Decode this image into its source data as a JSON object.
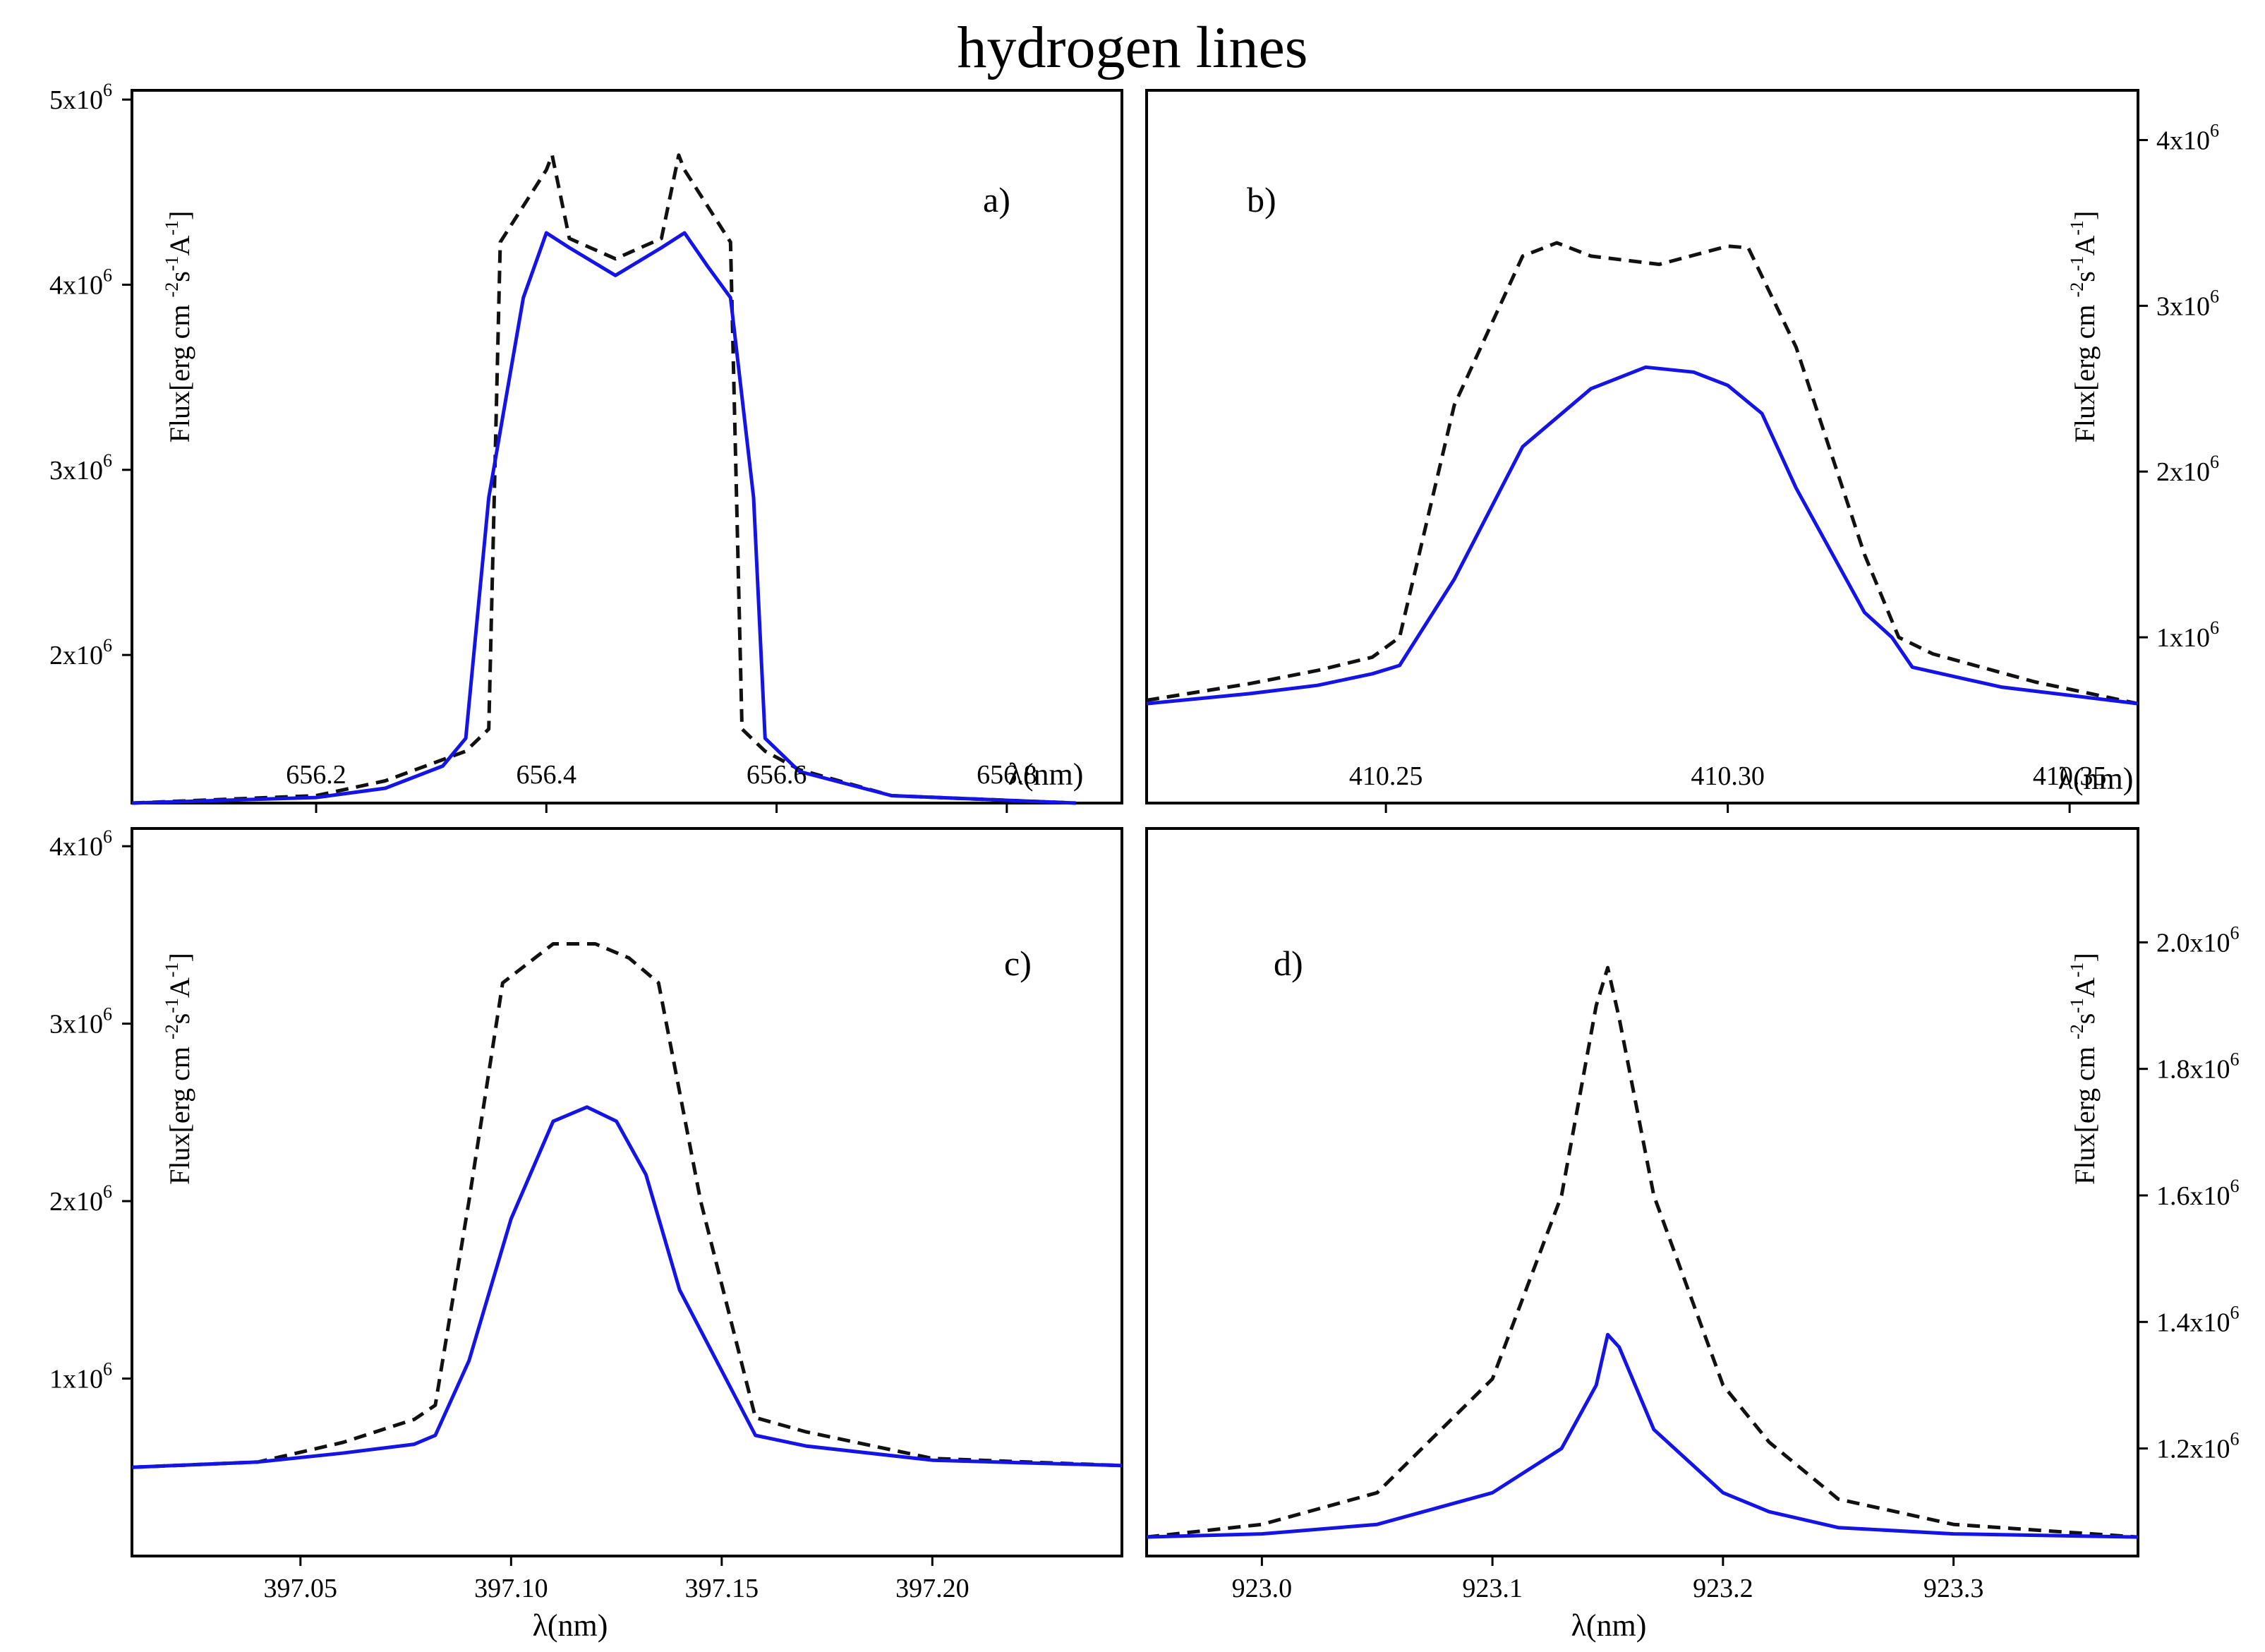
{
  "title": "hydrogen lines",
  "colors": {
    "dashed": "#111111",
    "solid": "#1414e6"
  },
  "chart_data": [
    {
      "type": "line",
      "panel_label": "a)",
      "xlabel": "λ(nm)",
      "ylabel": "Flux[erg cm-2s-1A-1]",
      "xlim": [
        656.04,
        656.9
      ],
      "ylim": [
        1200000,
        5050000
      ],
      "xticks": [
        656.2,
        656.4,
        656.6,
        656.8
      ],
      "xtick_labels": [
        "656.2",
        "656.4",
        "656.6",
        "656.8"
      ],
      "yticks": [
        2000000,
        3000000,
        4000000,
        5000000
      ],
      "ytick_labels": [
        {
          "base": "2x10",
          "exp": "6"
        },
        {
          "base": "3x10",
          "exp": "6"
        },
        {
          "base": "4x10",
          "exp": "6"
        },
        {
          "base": "5x10",
          "exp": "6"
        }
      ],
      "yaxis_side": "left",
      "series": [
        {
          "name": "dashed",
          "x": [
            656.04,
            656.2,
            656.26,
            656.33,
            656.35,
            656.36,
            656.4,
            656.405,
            656.42,
            656.46,
            656.5,
            656.515,
            656.52,
            656.56,
            656.57,
            656.59,
            656.62,
            656.7,
            656.86
          ],
          "y": [
            1200000,
            1240000,
            1320000,
            1480000,
            1600000,
            4230000,
            4620000,
            4700000,
            4250000,
            4140000,
            4250000,
            4700000,
            4620000,
            4230000,
            1600000,
            1480000,
            1380000,
            1240000,
            1200000
          ]
        },
        {
          "name": "solid",
          "x": [
            656.04,
            656.2,
            656.26,
            656.31,
            656.33,
            656.35,
            656.38,
            656.4,
            656.42,
            656.46,
            656.5,
            656.52,
            656.54,
            656.56,
            656.58,
            656.59,
            656.62,
            656.7,
            656.86
          ],
          "y": [
            1200000,
            1230000,
            1280000,
            1400000,
            1550000,
            2850000,
            3930000,
            4280000,
            4200000,
            4050000,
            4200000,
            4280000,
            4100000,
            3930000,
            2850000,
            1550000,
            1370000,
            1240000,
            1200000
          ]
        }
      ]
    },
    {
      "type": "line",
      "panel_label": "b)",
      "xlabel": "λ(nm)",
      "ylabel": "Flux[erg cm-2s-1A-1]",
      "xlim": [
        410.215,
        410.36
      ],
      "ylim": [
        0,
        4300000
      ],
      "xticks": [
        410.25,
        410.3,
        410.35
      ],
      "xtick_labels": [
        "410.25",
        "410.30",
        "410.35"
      ],
      "yticks": [
        1000000,
        2000000,
        3000000,
        4000000
      ],
      "ytick_labels": [
        {
          "base": "1x10",
          "exp": "6"
        },
        {
          "base": "2x10",
          "exp": "6"
        },
        {
          "base": "3x10",
          "exp": "6"
        },
        {
          "base": "4x10",
          "exp": "6"
        }
      ],
      "yaxis_side": "right",
      "series": [
        {
          "name": "dashed",
          "x": [
            410.215,
            410.23,
            410.24,
            410.248,
            410.252,
            410.26,
            410.27,
            410.275,
            410.28,
            410.29,
            410.3,
            410.303,
            410.31,
            410.32,
            410.325,
            410.33,
            410.345,
            410.36
          ],
          "y": [
            620000,
            720000,
            800000,
            880000,
            1000000,
            2400000,
            3300000,
            3380000,
            3300000,
            3250000,
            3360000,
            3350000,
            2750000,
            1500000,
            1000000,
            900000,
            730000,
            600000
          ]
        },
        {
          "name": "solid",
          "x": [
            410.215,
            410.23,
            410.24,
            410.248,
            410.252,
            410.26,
            410.27,
            410.28,
            410.288,
            410.295,
            410.3,
            410.305,
            410.31,
            410.32,
            410.324,
            410.327,
            410.34,
            410.36
          ],
          "y": [
            600000,
            660000,
            710000,
            780000,
            830000,
            1350000,
            2150000,
            2500000,
            2630000,
            2600000,
            2520000,
            2350000,
            1900000,
            1150000,
            1000000,
            820000,
            700000,
            600000
          ]
        }
      ]
    },
    {
      "type": "line",
      "panel_label": "c)",
      "xlabel": "λ(nm)",
      "ylabel": "Flux[erg cm-2s-1A-1]",
      "xlim": [
        397.01,
        397.245
      ],
      "ylim": [
        0,
        4100000
      ],
      "xticks": [
        397.05,
        397.1,
        397.15,
        397.2
      ],
      "xtick_labels": [
        "397.05",
        "397.10",
        "397.15",
        "397.20"
      ],
      "yticks": [
        1000000,
        2000000,
        3000000,
        4000000
      ],
      "ytick_labels": [
        {
          "base": "1x10",
          "exp": "6"
        },
        {
          "base": "2x10",
          "exp": "6"
        },
        {
          "base": "3x10",
          "exp": "6"
        },
        {
          "base": "4x10",
          "exp": "6"
        }
      ],
      "yaxis_side": "left",
      "series": [
        {
          "name": "dashed",
          "x": [
            397.01,
            397.04,
            397.06,
            397.077,
            397.082,
            397.09,
            397.098,
            397.11,
            397.12,
            397.128,
            397.135,
            397.145,
            397.158,
            397.17,
            397.2,
            397.245
          ],
          "y": [
            500000,
            530000,
            640000,
            770000,
            850000,
            2000000,
            3230000,
            3450000,
            3450000,
            3370000,
            3230000,
            2000000,
            780000,
            700000,
            550000,
            510000
          ]
        },
        {
          "name": "solid",
          "x": [
            397.01,
            397.04,
            397.06,
            397.077,
            397.082,
            397.09,
            397.1,
            397.11,
            397.118,
            397.125,
            397.132,
            397.14,
            397.158,
            397.17,
            397.2,
            397.245
          ],
          "y": [
            500000,
            530000,
            580000,
            630000,
            680000,
            1100000,
            1900000,
            2450000,
            2530000,
            2450000,
            2150000,
            1500000,
            680000,
            620000,
            540000,
            510000
          ]
        }
      ]
    },
    {
      "type": "line",
      "panel_label": "d)",
      "xlabel": "λ(nm)",
      "ylabel": "Flux[erg cm-2s-1A-1]",
      "xlim": [
        922.95,
        923.38
      ],
      "ylim": [
        1030000,
        2180000
      ],
      "xticks": [
        923.0,
        923.1,
        923.2,
        923.3
      ],
      "xtick_labels": [
        "923.0",
        "923.1",
        "923.2",
        "923.3"
      ],
      "yticks": [
        1200000,
        1400000,
        1600000,
        1800000,
        2000000
      ],
      "ytick_labels": [
        {
          "base": "1.2x10",
          "exp": "6"
        },
        {
          "base": "1.4x10",
          "exp": "6"
        },
        {
          "base": "1.6x10",
          "exp": "6"
        },
        {
          "base": "1.8x10",
          "exp": "6"
        },
        {
          "base": "2.0x10",
          "exp": "6"
        }
      ],
      "yaxis_side": "right",
      "series": [
        {
          "name": "dashed",
          "x": [
            922.95,
            923.0,
            923.05,
            923.1,
            923.13,
            923.145,
            923.15,
            923.155,
            923.17,
            923.2,
            923.22,
            923.25,
            923.3,
            923.38
          ],
          "y": [
            1060000,
            1080000,
            1130000,
            1310000,
            1600000,
            1900000,
            1960000,
            1880000,
            1600000,
            1300000,
            1210000,
            1120000,
            1080000,
            1060000
          ]
        },
        {
          "name": "solid",
          "x": [
            922.95,
            923.0,
            923.05,
            923.1,
            923.13,
            923.145,
            923.15,
            923.155,
            923.17,
            923.2,
            923.22,
            923.25,
            923.3,
            923.38
          ],
          "y": [
            1060000,
            1065000,
            1080000,
            1130000,
            1200000,
            1300000,
            1380000,
            1360000,
            1230000,
            1130000,
            1100000,
            1075000,
            1065000,
            1060000
          ]
        }
      ]
    }
  ]
}
